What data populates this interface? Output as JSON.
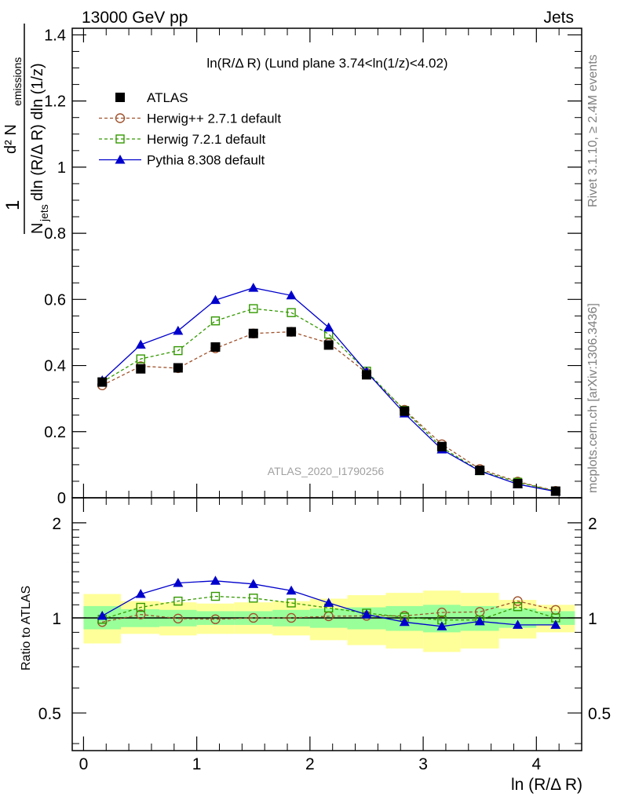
{
  "header": {
    "left": "13000 GeV pp",
    "right": "Jets"
  },
  "side_labels": {
    "rivet": "Rivet 3.1.10, ≥ 2.4M events",
    "mcplots": "mcplots.cern.ch [arXiv:1306.3436]"
  },
  "watermark": "ATLAS_2020_I1790256",
  "chart_data": [
    {
      "type": "line",
      "title": "ln(R/Δ R) (Lund plane 3.74<ln(1/z)<4.02)",
      "xlabel": "ln (R/Δ R)",
      "ylabel": "1/N_jets d²N_emissions / dln(R/Δ R) dln(1/z)",
      "ylabel_parts": {
        "one": "1",
        "d2": "d² N",
        "emissions": "emissions",
        "n": "N",
        "jets": "jets",
        "rest": "dln (R/Δ R) dln (1/z)"
      },
      "xlim": [
        -0.1,
        4.4
      ],
      "ylim": [
        0,
        1.42
      ],
      "yticks": [
        "0",
        "0.2",
        "0.4",
        "0.6",
        "0.8",
        "1",
        "1.2",
        "1.4"
      ],
      "ytick_values": [
        0,
        0.2,
        0.4,
        0.6,
        0.8,
        1.0,
        1.2,
        1.4
      ],
      "legend_position": "top-left",
      "x": [
        0.165,
        0.505,
        0.835,
        1.165,
        1.5,
        1.835,
        2.165,
        2.5,
        2.835,
        3.165,
        3.5,
        3.835,
        4.17
      ],
      "series": [
        {
          "name": "ATLAS",
          "marker": "filled-square",
          "color": "#000000",
          "values": [
            0.35,
            0.39,
            0.393,
            0.456,
            0.497,
            0.502,
            0.462,
            0.372,
            0.262,
            0.155,
            0.083,
            0.043,
            0.02
          ]
        },
        {
          "name": "Herwig++ 2.7.1 default",
          "marker": "open-circle",
          "color": "#a0522d",
          "line": "dashed",
          "values": [
            0.34,
            0.398,
            0.392,
            0.452,
            0.497,
            0.502,
            0.468,
            0.378,
            0.266,
            0.162,
            0.087,
            0.049,
            0.021
          ]
        },
        {
          "name": "Herwig 7.2.1 default",
          "marker": "open-square",
          "color": "#339900",
          "line": "dashed",
          "values": [
            0.35,
            0.42,
            0.445,
            0.535,
            0.572,
            0.56,
            0.495,
            0.383,
            0.264,
            0.152,
            0.082,
            0.047,
            0.02
          ]
        },
        {
          "name": "Pythia 8.308 default",
          "marker": "filled-triangle",
          "color": "#0000cc",
          "line": "solid",
          "values": [
            0.355,
            0.463,
            0.505,
            0.598,
            0.635,
            0.612,
            0.515,
            0.381,
            0.255,
            0.146,
            0.081,
            0.041,
            0.019
          ]
        }
      ]
    },
    {
      "type": "line",
      "xlabel": "ln (R/Δ R)",
      "ylabel": "Ratio to ATLAS",
      "xlim": [
        -0.1,
        4.4
      ],
      "ylim": [
        0.38,
        2.4
      ],
      "ylog": true,
      "yticks": [
        "0.5",
        "1",
        "2"
      ],
      "ytick_values": [
        0.5,
        1,
        2
      ],
      "xticks": [
        "0",
        "1",
        "2",
        "3",
        "4"
      ],
      "xtick_values": [
        0,
        1,
        2,
        3,
        4
      ],
      "x": [
        0.165,
        0.505,
        0.835,
        1.165,
        1.5,
        1.835,
        2.165,
        2.5,
        2.835,
        3.165,
        3.5,
        3.835,
        4.17
      ],
      "bin_edges": [
        0,
        0.33,
        0.67,
        1.0,
        1.33,
        1.67,
        2.0,
        2.33,
        2.67,
        3.0,
        3.33,
        3.67,
        4.0,
        4.34
      ],
      "bands": {
        "green_low": [
          0.92,
          0.935,
          0.94,
          0.95,
          0.95,
          0.94,
          0.93,
          0.92,
          0.91,
          0.9,
          0.91,
          0.93,
          0.95
        ],
        "green_high": [
          1.09,
          1.065,
          1.06,
          1.05,
          1.05,
          1.06,
          1.07,
          1.08,
          1.09,
          1.1,
          1.09,
          1.07,
          1.05
        ],
        "yellow_low": [
          0.83,
          0.89,
          0.88,
          0.89,
          0.89,
          0.88,
          0.85,
          0.82,
          0.8,
          0.78,
          0.8,
          0.86,
          0.9
        ],
        "yellow_high": [
          1.19,
          1.13,
          1.12,
          1.11,
          1.12,
          1.13,
          1.15,
          1.18,
          1.2,
          1.22,
          1.2,
          1.14,
          1.1
        ]
      },
      "series": [
        {
          "name": "Herwig++ 2.7.1 default",
          "values": [
            0.97,
            1.025,
            0.995,
            0.99,
            1.0,
            1.0,
            1.012,
            1.015,
            1.015,
            1.04,
            1.045,
            1.13,
            1.06
          ]
        },
        {
          "name": "Herwig 7.2.1 default",
          "values": [
            0.99,
            1.08,
            1.13,
            1.17,
            1.155,
            1.115,
            1.075,
            1.035,
            1.005,
            0.985,
            0.985,
            1.085,
            1.0
          ]
        },
        {
          "name": "Pythia 8.308 default",
          "values": [
            1.015,
            1.19,
            1.29,
            1.31,
            1.28,
            1.22,
            1.115,
            1.025,
            0.97,
            0.94,
            0.975,
            0.95,
            0.95
          ]
        }
      ]
    }
  ]
}
